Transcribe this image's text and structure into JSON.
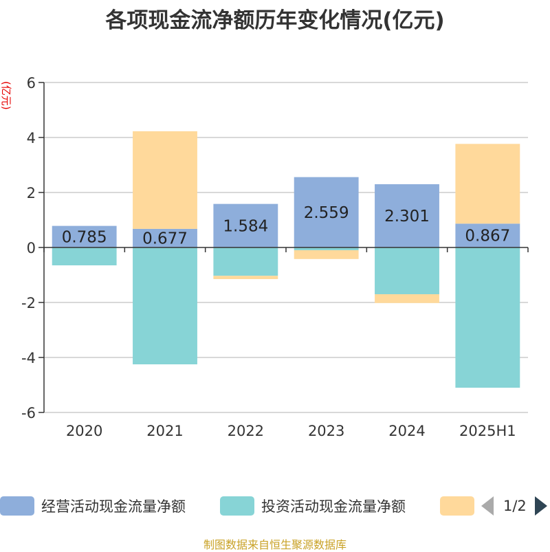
{
  "chart_data": {
    "type": "bar",
    "stacked": true,
    "title": "各项现金流净额历年变化情况(亿元)",
    "ylabel": "(亿元)",
    "xlabel": "",
    "categories": [
      "2020",
      "2021",
      "2022",
      "2023",
      "2024",
      "2025H1"
    ],
    "ylim": [
      -6,
      6
    ],
    "yticks": [
      6,
      4,
      2,
      0,
      -2,
      -4,
      -6
    ],
    "grid": true,
    "series": [
      {
        "name": "经营活动现金流量净额",
        "color": "#8eaedb",
        "values": [
          0.785,
          0.677,
          1.584,
          2.559,
          2.301,
          0.867
        ],
        "labels": [
          "0.785",
          "0.677",
          "1.584",
          "2.559",
          "2.301",
          "0.867"
        ]
      },
      {
        "name": "投资活动现金流量净额",
        "color": "#87d4d6",
        "values": [
          -0.65,
          -4.25,
          -1.03,
          -0.1,
          -1.7,
          -5.1
        ]
      },
      {
        "name": "",
        "color": "#ffd99b",
        "values": [
          0,
          3.55,
          -0.12,
          -0.32,
          -0.32,
          2.9
        ]
      }
    ],
    "legend": {
      "position": "bottom",
      "page": "1/2"
    }
  },
  "source_note": "制图数据来自恒生聚源数据库"
}
